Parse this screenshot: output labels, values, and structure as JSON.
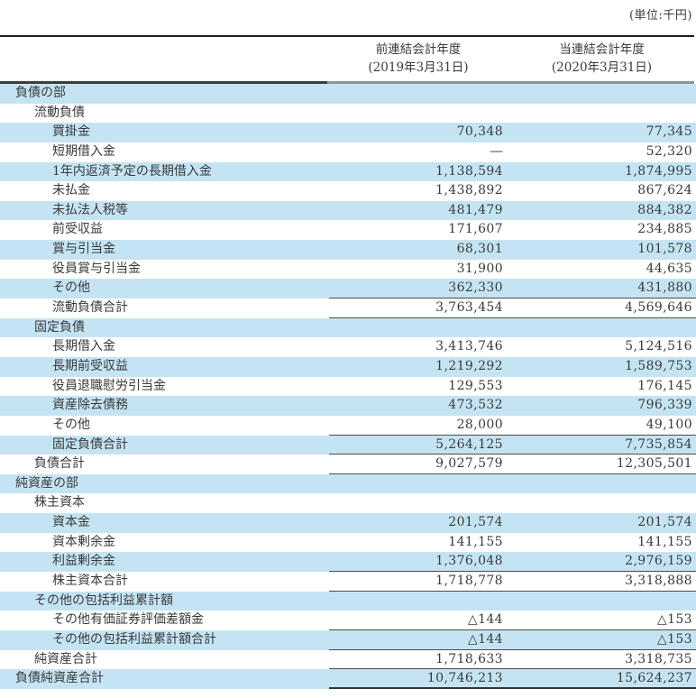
{
  "unit_label": "(単位:千円)",
  "columns": [
    {
      "label": "前連結会計年度",
      "sublabel": "(2019年3月31日)"
    },
    {
      "label": "当連結会計年度",
      "sublabel": "(2020年3月31日)"
    }
  ],
  "colors": {
    "row_blue": "#c4e4f3",
    "rule_dark": "#3d3d3d",
    "rule_gray": "#8e9397",
    "text": "#3a3a3a"
  },
  "rows": [
    {
      "label": "負債の部",
      "indent": 1,
      "v1": "",
      "v2": "",
      "rule": "none"
    },
    {
      "label": "流動負債",
      "indent": 2,
      "v1": "",
      "v2": "",
      "rule": "none"
    },
    {
      "label": "買掛金",
      "indent": 3,
      "v1": "70,348",
      "v2": "77,345",
      "rule": "none"
    },
    {
      "label": "短期借入金",
      "indent": 3,
      "v1": "―",
      "v2": "52,320",
      "rule": "none"
    },
    {
      "label": "1年内返済予定の長期借入金",
      "indent": 3,
      "v1": "1,138,594",
      "v2": "1,874,995",
      "rule": "none"
    },
    {
      "label": "未払金",
      "indent": 3,
      "v1": "1,438,892",
      "v2": "867,624",
      "rule": "none"
    },
    {
      "label": "未払法人税等",
      "indent": 3,
      "v1": "481,479",
      "v2": "884,382",
      "rule": "none"
    },
    {
      "label": "前受収益",
      "indent": 3,
      "v1": "171,607",
      "v2": "234,885",
      "rule": "none"
    },
    {
      "label": "賞与引当金",
      "indent": 3,
      "v1": "68,301",
      "v2": "101,578",
      "rule": "none"
    },
    {
      "label": "役員賞与引当金",
      "indent": 3,
      "v1": "31,900",
      "v2": "44,635",
      "rule": "none"
    },
    {
      "label": "その他",
      "indent": 3,
      "v1": "362,330",
      "v2": "431,880",
      "rule": "thin"
    },
    {
      "label": "流動負債合計",
      "indent": 3,
      "v1": "3,763,454",
      "v2": "4,569,646",
      "rule": "thin"
    },
    {
      "label": "固定負債",
      "indent": 2,
      "v1": "",
      "v2": "",
      "rule": "none"
    },
    {
      "label": "長期借入金",
      "indent": 3,
      "v1": "3,413,746",
      "v2": "5,124,516",
      "rule": "none"
    },
    {
      "label": "長期前受収益",
      "indent": 3,
      "v1": "1,219,292",
      "v2": "1,589,753",
      "rule": "none"
    },
    {
      "label": "役員退職慰労引当金",
      "indent": 3,
      "v1": "129,553",
      "v2": "176,145",
      "rule": "none"
    },
    {
      "label": "資産除去債務",
      "indent": 3,
      "v1": "473,532",
      "v2": "796,339",
      "rule": "none"
    },
    {
      "label": "その他",
      "indent": 3,
      "v1": "28,000",
      "v2": "49,100",
      "rule": "thin"
    },
    {
      "label": "固定負債合計",
      "indent": 3,
      "v1": "5,264,125",
      "v2": "7,735,854",
      "rule": "thin"
    },
    {
      "label": "負債合計",
      "indent": 2,
      "v1": "9,027,579",
      "v2": "12,305,501",
      "rule": "thin"
    },
    {
      "label": "純資産の部",
      "indent": 1,
      "v1": "",
      "v2": "",
      "rule": "none"
    },
    {
      "label": "株主資本",
      "indent": 2,
      "v1": "",
      "v2": "",
      "rule": "none"
    },
    {
      "label": "資本金",
      "indent": 3,
      "v1": "201,574",
      "v2": "201,574",
      "rule": "none"
    },
    {
      "label": "資本剰余金",
      "indent": 3,
      "v1": "141,155",
      "v2": "141,155",
      "rule": "none"
    },
    {
      "label": "利益剰余金",
      "indent": 3,
      "v1": "1,376,048",
      "v2": "2,976,159",
      "rule": "thin"
    },
    {
      "label": "株主資本合計",
      "indent": 3,
      "v1": "1,718,778",
      "v2": "3,318,888",
      "rule": "thin"
    },
    {
      "label": "その他の包括利益累計額",
      "indent": 2,
      "v1": "",
      "v2": "",
      "rule": "none"
    },
    {
      "label": "その他有価証券評価差額金",
      "indent": 3,
      "v1": "△144",
      "v2": "△153",
      "rule": "thin"
    },
    {
      "label": "その他の包括利益累計額合計",
      "indent": 3,
      "v1": "△144",
      "v2": "△153",
      "rule": "thin"
    },
    {
      "label": "純資産合計",
      "indent": 2,
      "v1": "1,718,633",
      "v2": "3,318,735",
      "rule": "thin"
    },
    {
      "label": "負債純資産合計",
      "indent": 1,
      "v1": "10,746,213",
      "v2": "15,624,237",
      "rule": "thick"
    }
  ]
}
